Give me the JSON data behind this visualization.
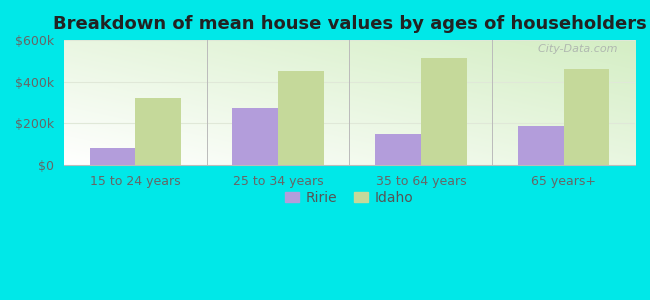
{
  "title": "Breakdown of mean house values by ages of householders",
  "categories": [
    "15 to 24 years",
    "25 to 34 years",
    "35 to 64 years",
    "65 years+"
  ],
  "ririe_values": [
    80000,
    275000,
    150000,
    185000
  ],
  "idaho_values": [
    320000,
    450000,
    515000,
    460000
  ],
  "ririe_color": "#b39ddb",
  "idaho_color": "#c5d99a",
  "background_color": "#00e8e8",
  "ylim": [
    0,
    600000
  ],
  "yticks": [
    0,
    200000,
    400000,
    600000
  ],
  "ytick_labels": [
    "$0",
    "$200k",
    "$400k",
    "$600k"
  ],
  "legend_labels": [
    "Ririe",
    "Idaho"
  ],
  "bar_width": 0.32,
  "watermark": "  City-Data.com",
  "title_fontsize": 13,
  "tick_fontsize": 9,
  "legend_fontsize": 10,
  "plot_bg_colors": [
    "#d4eec4",
    "#f5fdf0",
    "#ffffff"
  ],
  "grid_color": "#e0e8d8",
  "spine_color": "#bbbbbb"
}
